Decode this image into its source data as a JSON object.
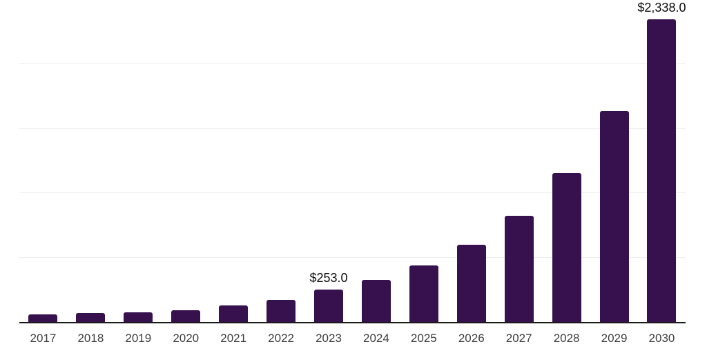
{
  "chart_data": {
    "type": "bar",
    "title": "",
    "xlabel": "",
    "ylabel": "",
    "categories": [
      "2017",
      "2018",
      "2019",
      "2020",
      "2021",
      "2022",
      "2023",
      "2024",
      "2025",
      "2026",
      "2027",
      "2028",
      "2029",
      "2030"
    ],
    "values": [
      58,
      68,
      76,
      90,
      128,
      172,
      253,
      328,
      438,
      598,
      820,
      1150,
      1630,
      2338
    ],
    "value_labels": [
      "",
      "",
      "",
      "",
      "",
      "",
      "$253.0",
      "",
      "",
      "",
      "",
      "",
      "",
      "$2,338.0"
    ],
    "ylim": [
      0,
      2500
    ],
    "grid_step": 500,
    "grid": true,
    "legend": "none",
    "y_tick_labels_shown": false
  },
  "colors": {
    "bar": "#36114D",
    "axis_line": "#1a1a1a",
    "gridline": "#efefef",
    "value_label_text": "#0d0d0d",
    "year_label_text": "#3d3d3d",
    "background": "#ffffff"
  }
}
